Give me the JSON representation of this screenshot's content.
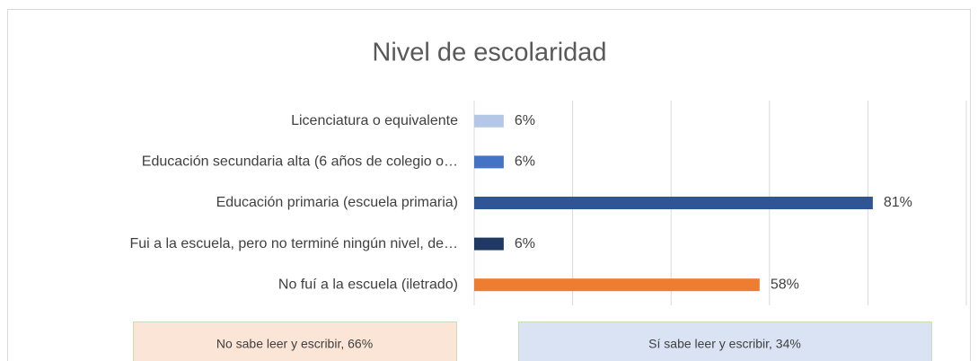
{
  "chart_data": {
    "type": "hbar",
    "title": "Nivel de escolaridad",
    "categories": [
      "Licenciatura o equivalente",
      "Educación secundaria alta (6 años de colegio o…",
      "Educación primaria (escuela primaria)",
      "Fui a la escuela, pero no terminé ningún nivel, de…",
      "No fuí a la escuela (iletrado)"
    ],
    "values": [
      6,
      6,
      81,
      6,
      58
    ],
    "value_labels": [
      "6%",
      "6%",
      "81%",
      "6%",
      "58%"
    ],
    "colors": [
      "#b4c7e7",
      "#4472c4",
      "#2f5597",
      "#203864",
      "#ed7d31"
    ],
    "xlim": [
      0,
      100
    ],
    "xticks": [
      0,
      20,
      40,
      60,
      80,
      100
    ],
    "grid": true,
    "annotations": [
      {
        "text": "No sabe leer y escribir, 66%",
        "color": "#fbe5d6"
      },
      {
        "text": "Sí sabe leer y escribir, 34%",
        "color": "#dae3f3"
      }
    ]
  }
}
